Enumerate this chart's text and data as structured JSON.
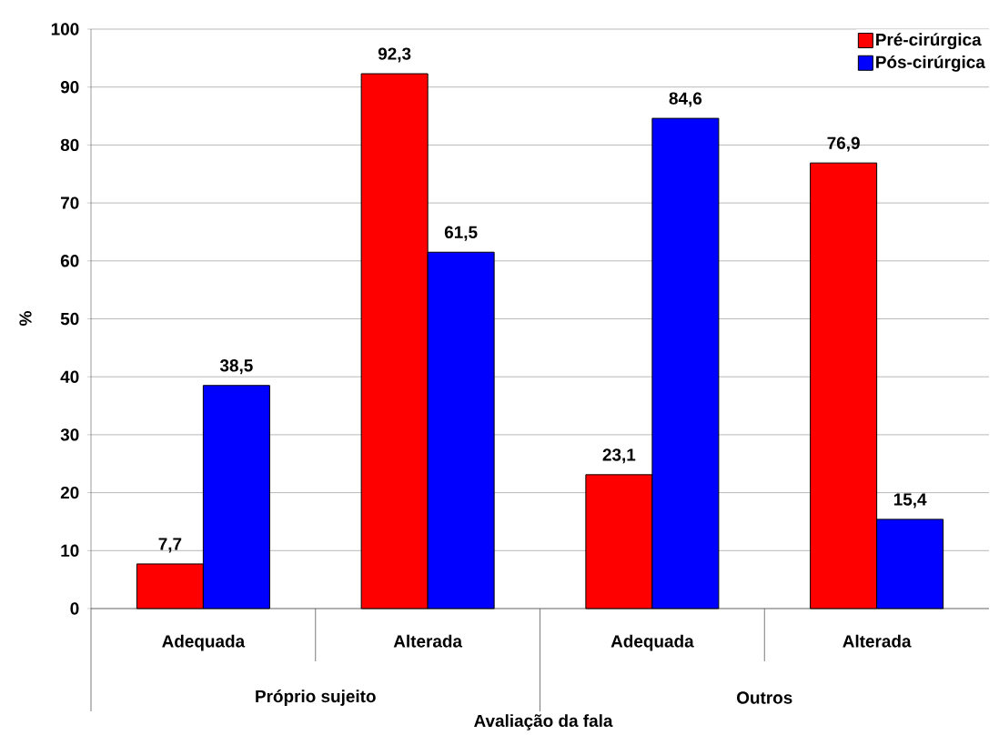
{
  "chart_data": {
    "type": "bar",
    "xlabel": "Avaliação da fala",
    "ylabel": "%",
    "categories": [
      "Adequada",
      "Alterada",
      "Adequada",
      "Alterada"
    ],
    "annotations": [
      "Próprio sujeito",
      "Outros"
    ],
    "series": [
      {
        "name": "Pré-cirúrgica",
        "color": "#ff0000",
        "values": [
          7.7,
          92.3,
          23.1,
          76.9
        ],
        "value_labels": [
          "7,7",
          "92,3",
          "23,1",
          "76,9"
        ]
      },
      {
        "name": "Pós-cirúrgica",
        "color": "#0000ff",
        "values": [
          38.5,
          61.5,
          84.6,
          15.4
        ],
        "value_labels": [
          "38,5",
          "61,5",
          "84,6",
          "15,4"
        ]
      }
    ],
    "ylim": [
      0,
      100
    ],
    "yticks": [
      0,
      10,
      20,
      30,
      40,
      50,
      60,
      70,
      80,
      90,
      100
    ],
    "grid": "y",
    "legend": "top right"
  }
}
